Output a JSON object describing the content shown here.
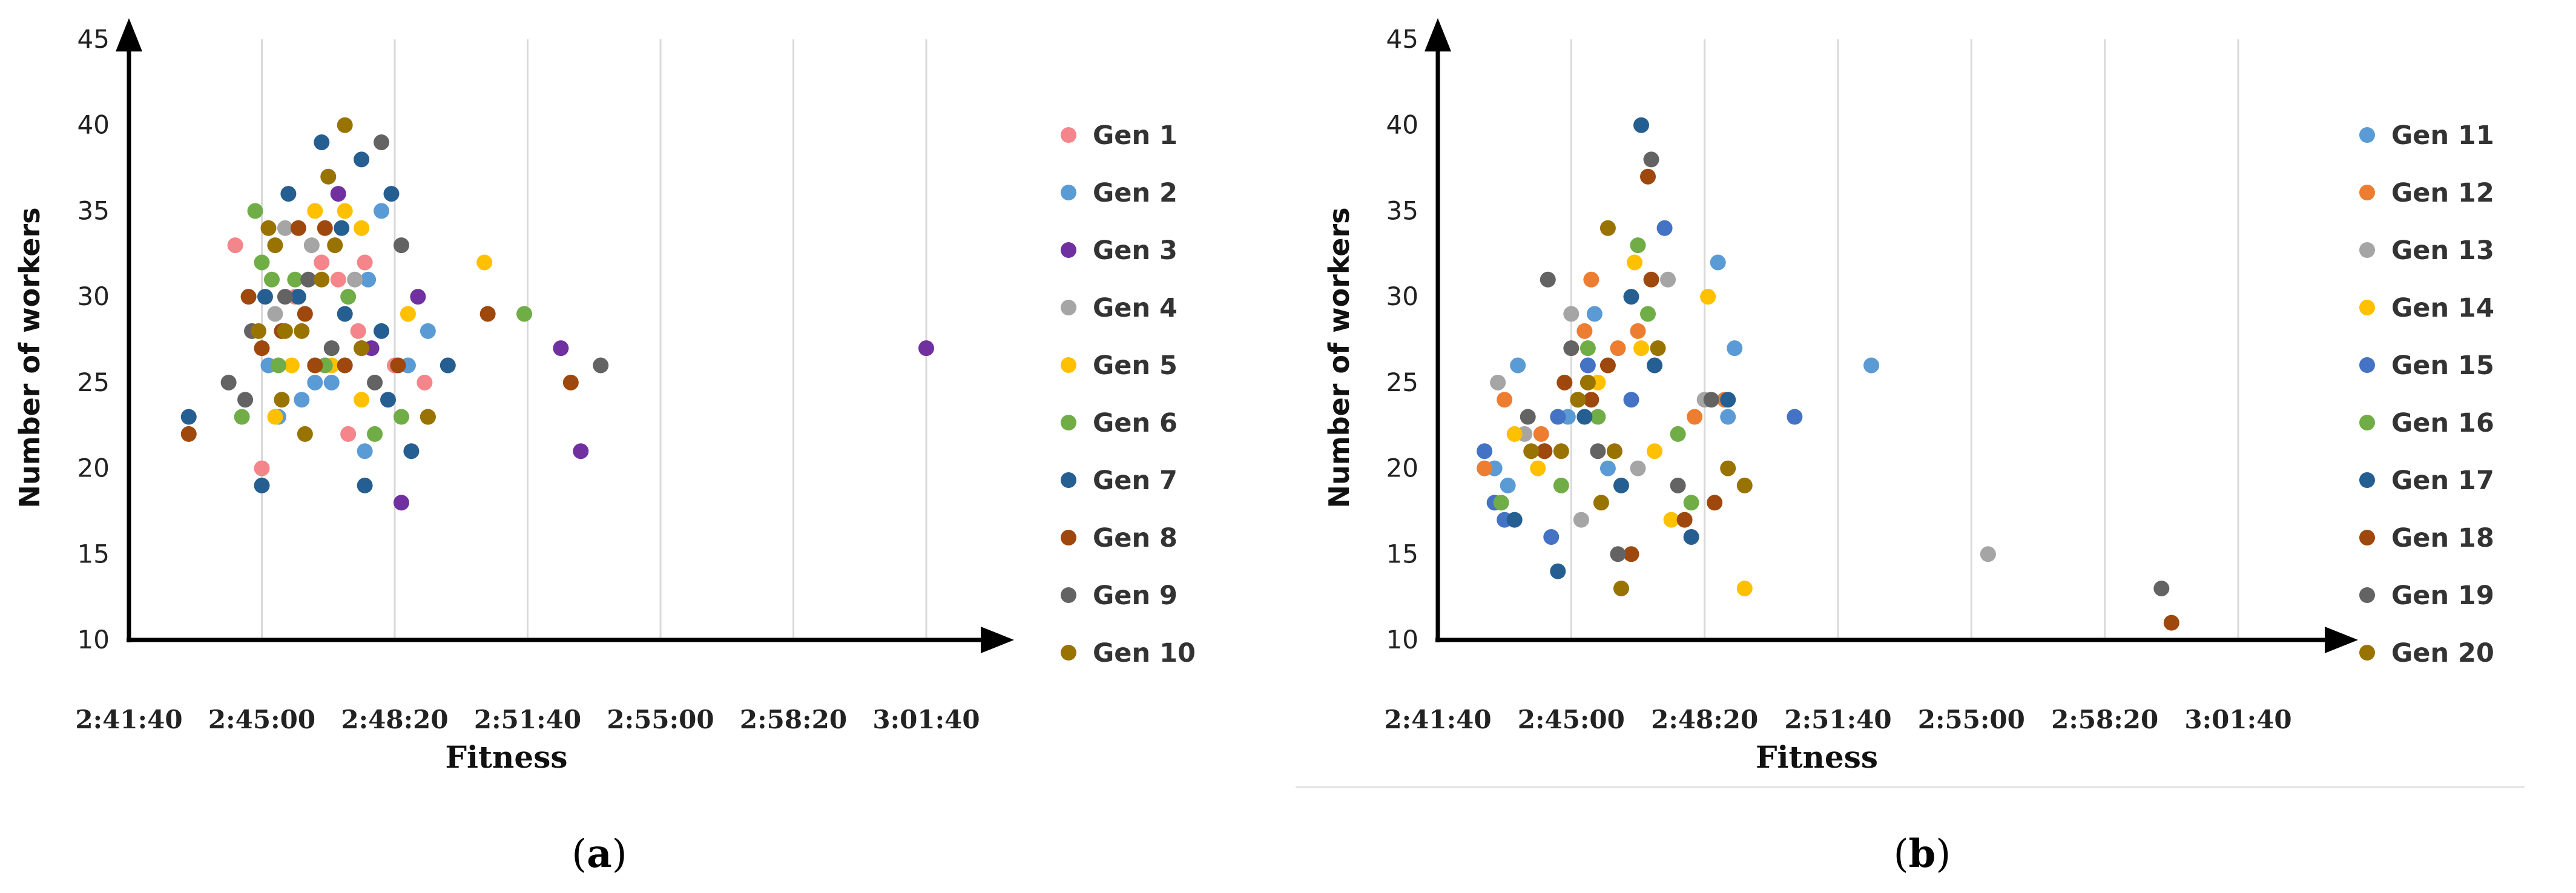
{
  "chart_data": [
    {
      "type": "scatter",
      "panel": "a",
      "caption": {
        "open": "(",
        "letter": "a",
        "close": ")"
      },
      "title": "",
      "xlabel": "Fitness",
      "ylabel": "Number of workers",
      "xlim": [
        "2:41:40",
        "3:03:00"
      ],
      "ylim": [
        10,
        45
      ],
      "xticks": [
        "2:41:40",
        "2:45:00",
        "2:48:20",
        "2:51:40",
        "2:55:00",
        "2:58:20",
        "3:01:40"
      ],
      "yticks": [
        10,
        15,
        20,
        25,
        30,
        35,
        40,
        45
      ],
      "grid": "vertical",
      "legend_position": "right",
      "series": [
        {
          "name": "Gen 1",
          "color": "#f4858a",
          "points": [
            [
              "2:44:20",
              33
            ],
            [
              "2:45:00",
              20
            ],
            [
              "2:45:50",
              30
            ],
            [
              "2:46:30",
              32
            ],
            [
              "2:46:55",
              31
            ],
            [
              "2:47:10",
              22
            ],
            [
              "2:47:25",
              28
            ],
            [
              "2:47:35",
              32
            ],
            [
              "2:48:20",
              26
            ],
            [
              "2:49:05",
              25
            ]
          ]
        },
        {
          "name": "Gen 2",
          "color": "#5b9bd5",
          "points": [
            [
              "2:45:10",
              26
            ],
            [
              "2:45:25",
              23
            ],
            [
              "2:46:00",
              24
            ],
            [
              "2:46:20",
              25
            ],
            [
              "2:46:45",
              25
            ],
            [
              "2:47:30",
              27
            ],
            [
              "2:47:35",
              21
            ],
            [
              "2:47:40",
              31
            ],
            [
              "2:48:00",
              35
            ],
            [
              "2:48:40",
              26
            ],
            [
              "2:49:10",
              28
            ]
          ]
        },
        {
          "name": "Gen 3",
          "color": "#7030a0",
          "points": [
            [
              "2:46:55",
              36
            ],
            [
              "2:47:45",
              27
            ],
            [
              "2:48:30",
              18
            ],
            [
              "2:48:55",
              30
            ],
            [
              "2:52:30",
              27
            ],
            [
              "2:53:00",
              21
            ],
            [
              "3:01:40",
              27
            ]
          ]
        },
        {
          "name": "Gen 4",
          "color": "#a5a5a5",
          "points": [
            [
              "2:45:20",
              29
            ],
            [
              "2:45:35",
              34
            ],
            [
              "2:46:15",
              33
            ],
            [
              "2:47:20",
              31
            ]
          ]
        },
        {
          "name": "Gen 5",
          "color": "#ffc000",
          "points": [
            [
              "2:45:20",
              23
            ],
            [
              "2:45:45",
              26
            ],
            [
              "2:46:20",
              35
            ],
            [
              "2:46:45",
              26
            ],
            [
              "2:47:05",
              35
            ],
            [
              "2:47:30",
              34
            ],
            [
              "2:47:30",
              24
            ],
            [
              "2:48:40",
              29
            ],
            [
              "2:50:35",
              32
            ]
          ]
        },
        {
          "name": "Gen 6",
          "color": "#70ad47",
          "points": [
            [
              "2:44:30",
              23
            ],
            [
              "2:44:50",
              35
            ],
            [
              "2:45:00",
              32
            ],
            [
              "2:45:15",
              31
            ],
            [
              "2:45:25",
              26
            ],
            [
              "2:45:50",
              31
            ],
            [
              "2:46:35",
              26
            ],
            [
              "2:47:10",
              30
            ],
            [
              "2:47:50",
              22
            ],
            [
              "2:48:30",
              23
            ],
            [
              "2:51:35",
              29
            ]
          ]
        },
        {
          "name": "Gen 7",
          "color": "#255e91",
          "points": [
            [
              "2:43:10",
              23
            ],
            [
              "2:45:00",
              19
            ],
            [
              "2:45:05",
              30
            ],
            [
              "2:45:40",
              36
            ],
            [
              "2:45:55",
              30
            ],
            [
              "2:46:30",
              39
            ],
            [
              "2:47:00",
              34
            ],
            [
              "2:47:05",
              29
            ],
            [
              "2:47:30",
              38
            ],
            [
              "2:47:35",
              19
            ],
            [
              "2:48:00",
              28
            ],
            [
              "2:48:10",
              24
            ],
            [
              "2:48:15",
              36
            ],
            [
              "2:48:45",
              21
            ],
            [
              "2:49:40",
              26
            ]
          ]
        },
        {
          "name": "Gen 8",
          "color": "#9e480e",
          "points": [
            [
              "2:43:10",
              22
            ],
            [
              "2:44:40",
              30
            ],
            [
              "2:45:00",
              27
            ],
            [
              "2:45:30",
              28
            ],
            [
              "2:45:55",
              34
            ],
            [
              "2:46:05",
              29
            ],
            [
              "2:46:20",
              26
            ],
            [
              "2:46:35",
              34
            ],
            [
              "2:47:05",
              26
            ],
            [
              "2:48:25",
              26
            ],
            [
              "2:49:10",
              23
            ],
            [
              "2:50:40",
              29
            ],
            [
              "2:52:45",
              25
            ]
          ]
        },
        {
          "name": "Gen 9",
          "color": "#636363",
          "points": [
            [
              "2:44:10",
              25
            ],
            [
              "2:44:35",
              24
            ],
            [
              "2:44:45",
              28
            ],
            [
              "2:45:35",
              30
            ],
            [
              "2:46:10",
              31
            ],
            [
              "2:46:45",
              27
            ],
            [
              "2:47:50",
              25
            ],
            [
              "2:48:00",
              39
            ],
            [
              "2:48:30",
              33
            ],
            [
              "2:53:30",
              26
            ]
          ]
        },
        {
          "name": "Gen 10",
          "color": "#997300",
          "points": [
            [
              "2:44:55",
              28
            ],
            [
              "2:45:10",
              34
            ],
            [
              "2:45:20",
              33
            ],
            [
              "2:45:30",
              24
            ],
            [
              "2:45:35",
              28
            ],
            [
              "2:46:00",
              28
            ],
            [
              "2:46:05",
              22
            ],
            [
              "2:46:30",
              31
            ],
            [
              "2:46:40",
              37
            ],
            [
              "2:46:50",
              33
            ],
            [
              "2:47:05",
              40
            ],
            [
              "2:47:30",
              27
            ],
            [
              "2:49:10",
              23
            ]
          ]
        }
      ]
    },
    {
      "type": "scatter",
      "panel": "b",
      "caption": {
        "open": "(",
        "letter": "b",
        "close": ")"
      },
      "title": "",
      "xlabel": "Fitness",
      "ylabel": "Number of workers",
      "xlim": [
        "2:41:40",
        "3:03:00"
      ],
      "ylim": [
        10,
        45
      ],
      "xticks": [
        "2:41:40",
        "2:45:00",
        "2:48:20",
        "2:51:40",
        "2:55:00",
        "2:58:20",
        "3:01:40"
      ],
      "yticks": [
        10,
        15,
        20,
        25,
        30,
        35,
        40,
        45
      ],
      "grid": "vertical",
      "legend_position": "right",
      "series": [
        {
          "name": "Gen 11",
          "color": "#5b9bd5",
          "points": [
            [
              "2:43:05",
              20
            ],
            [
              "2:43:25",
              19
            ],
            [
              "2:43:40",
              26
            ],
            [
              "2:44:55",
              23
            ],
            [
              "2:45:35",
              29
            ],
            [
              "2:45:55",
              20
            ],
            [
              "2:48:40",
              32
            ],
            [
              "2:48:55",
              23
            ],
            [
              "2:49:05",
              27
            ],
            [
              "2:52:30",
              26
            ]
          ]
        },
        {
          "name": "Gen 12",
          "color": "#ed7d31",
          "points": [
            [
              "2:42:50",
              20
            ],
            [
              "2:43:20",
              24
            ],
            [
              "2:44:15",
              22
            ],
            [
              "2:45:20",
              28
            ],
            [
              "2:45:30",
              31
            ],
            [
              "2:46:10",
              27
            ],
            [
              "2:46:40",
              28
            ],
            [
              "2:48:05",
              23
            ],
            [
              "2:48:50",
              24
            ]
          ]
        },
        {
          "name": "Gen 13",
          "color": "#a5a5a5",
          "points": [
            [
              "2:43:10",
              25
            ],
            [
              "2:43:50",
              22
            ],
            [
              "2:45:00",
              29
            ],
            [
              "2:45:15",
              17
            ],
            [
              "2:46:40",
              20
            ],
            [
              "2:47:25",
              31
            ],
            [
              "2:48:20",
              24
            ],
            [
              "2:55:25",
              15
            ]
          ]
        },
        {
          "name": "Gen 14",
          "color": "#ffc000",
          "points": [
            [
              "2:43:35",
              22
            ],
            [
              "2:44:10",
              20
            ],
            [
              "2:45:40",
              25
            ],
            [
              "2:46:35",
              32
            ],
            [
              "2:46:45",
              27
            ],
            [
              "2:47:05",
              21
            ],
            [
              "2:47:30",
              17
            ],
            [
              "2:48:25",
              30
            ],
            [
              "2:49:20",
              13
            ]
          ]
        },
        {
          "name": "Gen 15",
          "color": "#4472c4",
          "points": [
            [
              "2:42:50",
              21
            ],
            [
              "2:43:05",
              18
            ],
            [
              "2:43:20",
              17
            ],
            [
              "2:44:30",
              16
            ],
            [
              "2:44:40",
              23
            ],
            [
              "2:45:25",
              26
            ],
            [
              "2:46:30",
              24
            ],
            [
              "2:47:20",
              34
            ],
            [
              "2:50:35",
              23
            ]
          ]
        },
        {
          "name": "Gen 16",
          "color": "#70ad47",
          "points": [
            [
              "2:43:15",
              18
            ],
            [
              "2:44:45",
              19
            ],
            [
              "2:45:10",
              24
            ],
            [
              "2:45:25",
              27
            ],
            [
              "2:45:40",
              23
            ],
            [
              "2:46:40",
              33
            ],
            [
              "2:46:55",
              29
            ],
            [
              "2:47:40",
              22
            ],
            [
              "2:48:00",
              18
            ]
          ]
        },
        {
          "name": "Gen 17",
          "color": "#255e91",
          "points": [
            [
              "2:43:35",
              17
            ],
            [
              "2:44:20",
              21
            ],
            [
              "2:44:40",
              14
            ],
            [
              "2:45:20",
              23
            ],
            [
              "2:46:15",
              19
            ],
            [
              "2:46:30",
              30
            ],
            [
              "2:46:45",
              40
            ],
            [
              "2:47:05",
              26
            ],
            [
              "2:48:00",
              16
            ],
            [
              "2:48:55",
              24
            ]
          ]
        },
        {
          "name": "Gen 18",
          "color": "#9e480e",
          "points": [
            [
              "2:44:20",
              21
            ],
            [
              "2:44:50",
              25
            ],
            [
              "2:45:30",
              24
            ],
            [
              "2:45:55",
              26
            ],
            [
              "2:46:30",
              15
            ],
            [
              "2:47:00",
              31
            ],
            [
              "2:46:55",
              37
            ],
            [
              "2:47:50",
              17
            ],
            [
              "2:48:35",
              18
            ],
            [
              "3:00:00",
              11
            ]
          ]
        },
        {
          "name": "Gen 19",
          "color": "#636363",
          "points": [
            [
              "2:43:55",
              23
            ],
            [
              "2:44:25",
              31
            ],
            [
              "2:45:00",
              27
            ],
            [
              "2:45:40",
              21
            ],
            [
              "2:46:10",
              15
            ],
            [
              "2:47:00",
              38
            ],
            [
              "2:47:40",
              19
            ],
            [
              "2:48:30",
              24
            ],
            [
              "2:59:45",
              13
            ]
          ]
        },
        {
          "name": "Gen 20",
          "color": "#997300",
          "points": [
            [
              "2:44:00",
              21
            ],
            [
              "2:44:45",
              21
            ],
            [
              "2:45:10",
              24
            ],
            [
              "2:45:25",
              25
            ],
            [
              "2:45:45",
              18
            ],
            [
              "2:45:55",
              34
            ],
            [
              "2:46:05",
              21
            ],
            [
              "2:46:15",
              13
            ],
            [
              "2:47:10",
              27
            ],
            [
              "2:48:55",
              20
            ],
            [
              "2:49:20",
              19
            ]
          ]
        }
      ]
    }
  ]
}
